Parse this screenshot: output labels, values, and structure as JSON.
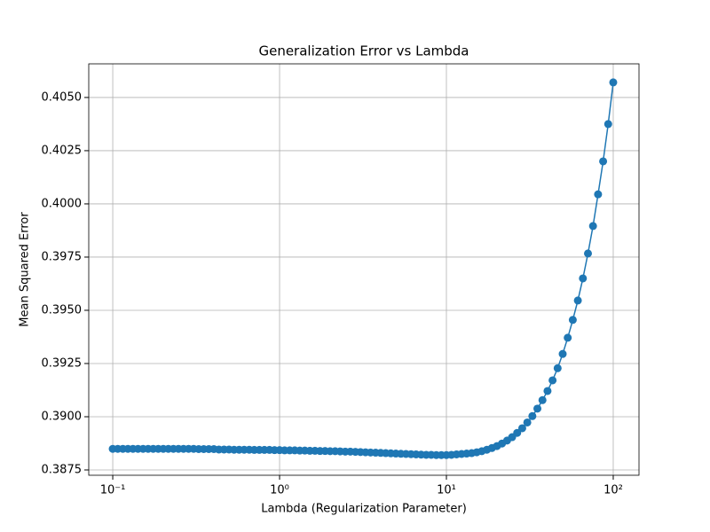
{
  "chart_data": {
    "type": "line",
    "title": "Generalization Error vs Lambda",
    "x_label": "Lambda (Regularization Parameter)",
    "y_label": "Mean Squared Error",
    "x_scale": "log",
    "grid": true,
    "xlim": [
      0.0718,
      142.7
    ],
    "ylim": [
      0.38725,
      0.40658
    ],
    "xticks": [
      {
        "value": 0.1,
        "label": "10⁻¹"
      },
      {
        "value": 1,
        "label": "10⁰"
      },
      {
        "value": 10,
        "label": "10¹"
      },
      {
        "value": 100,
        "label": "10²"
      }
    ],
    "yticks": [
      0.3875,
      {
        "value": 0.39,
        "label": "0.3900"
      },
      0.3925,
      {
        "value": 0.395,
        "label": "0.3950"
      },
      0.3975,
      {
        "value": 0.4,
        "label": "0.4000"
      },
      0.4025,
      {
        "value": 0.405,
        "label": "0.4050"
      }
    ],
    "x": [
      0.1,
      0.1072,
      0.115,
      0.1233,
      0.1322,
      0.1417,
      0.152,
      0.163,
      0.1748,
      0.1874,
      0.2009,
      0.2154,
      0.231,
      0.2477,
      0.2656,
      0.2848,
      0.3054,
      0.3275,
      0.3511,
      0.3765,
      0.4037,
      0.4329,
      0.4642,
      0.4977,
      0.5337,
      0.5722,
      0.6136,
      0.6579,
      0.7055,
      0.7565,
      0.8111,
      0.8697,
      0.9326,
      1,
      1.072,
      1.15,
      1.233,
      1.322,
      1.417,
      1.52,
      1.63,
      1.748,
      1.874,
      2.009,
      2.154,
      2.31,
      2.477,
      2.656,
      2.848,
      3.054,
      3.275,
      3.511,
      3.765,
      4.037,
      4.329,
      4.642,
      4.977,
      5.337,
      5.722,
      6.136,
      6.579,
      7.055,
      7.565,
      8.111,
      8.697,
      9.326,
      10,
      10.72,
      11.5,
      12.33,
      13.22,
      14.17,
      15.2,
      16.3,
      17.48,
      18.74,
      20.09,
      21.54,
      23.1,
      24.77,
      26.56,
      28.48,
      30.54,
      32.75,
      35.11,
      37.65,
      40.37,
      43.29,
      46.42,
      49.77,
      53.37,
      57.22,
      61.36,
      65.79,
      70.55,
      75.65,
      81.11,
      86.97,
      93.26,
      100
    ],
    "series": [
      {
        "color": "#1f77b4",
        "values": [
          0.38849,
          0.38849,
          0.38849,
          0.38849,
          0.38849,
          0.38849,
          0.38849,
          0.38849,
          0.38849,
          0.38849,
          0.38849,
          0.38849,
          0.38849,
          0.38849,
          0.38849,
          0.38849,
          0.38849,
          0.38848,
          0.38848,
          0.38848,
          0.38848,
          0.38846,
          0.38846,
          0.38846,
          0.38845,
          0.38845,
          0.38845,
          0.38845,
          0.38844,
          0.38844,
          0.38844,
          0.38844,
          0.38843,
          0.38843,
          0.38842,
          0.38842,
          0.38842,
          0.38841,
          0.38841,
          0.3884,
          0.3884,
          0.38839,
          0.38839,
          0.38838,
          0.38838,
          0.38837,
          0.38836,
          0.38836,
          0.38835,
          0.38834,
          0.38833,
          0.38832,
          0.38831,
          0.3883,
          0.38829,
          0.38828,
          0.38827,
          0.38826,
          0.38825,
          0.38824,
          0.38823,
          0.38822,
          0.38821,
          0.38821,
          0.3882,
          0.3882,
          0.3882,
          0.38821,
          0.38823,
          0.38825,
          0.38827,
          0.38829,
          0.38833,
          0.38838,
          0.38845,
          0.38853,
          0.38862,
          0.38874,
          0.38888,
          0.38904,
          0.38924,
          0.38946,
          0.38973,
          0.39003,
          0.39038,
          0.39078,
          0.39121,
          0.39171,
          0.39228,
          0.39295,
          0.39371,
          0.39455,
          0.39546,
          0.3965,
          0.39767,
          0.39896,
          0.40045,
          0.402,
          0.40375,
          0.40571
        ]
      }
    ]
  }
}
